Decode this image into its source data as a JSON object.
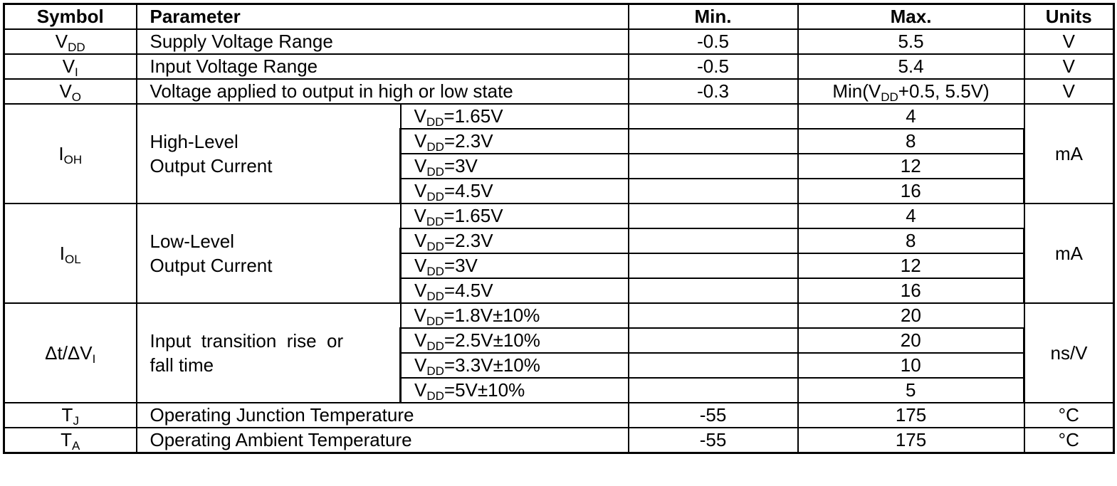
{
  "headers": {
    "symbol": "Symbol",
    "parameter": "Parameter",
    "min": "Min.",
    "max": "Max.",
    "units": "Units"
  },
  "simple_rows_top": [
    {
      "sym_base": "V",
      "sym_sub": "DD",
      "param": "Supply Voltage Range",
      "min": "-0.5",
      "max": "5.5",
      "unit": "V"
    },
    {
      "sym_base": "V",
      "sym_sub": "I",
      "param": "Input Voltage Range",
      "min": "-0.5",
      "max": "5.4",
      "unit": "V"
    },
    {
      "sym_base": "V",
      "sym_sub": "O",
      "param": "Voltage applied to output in high or low state",
      "min": "-0.3",
      "max_pre": "Min(V",
      "max_sub": "DD",
      "max_post": "+0.5, 5.5V)",
      "unit": "V"
    }
  ],
  "groups": [
    {
      "sym_base": "I",
      "sym_sub": "OH",
      "param_line1": "High-Level",
      "param_line2": "Output Current",
      "unit": "mA",
      "conditions": [
        {
          "v": "V",
          "sub": "DD",
          "eq": "=1.65V",
          "max": "4"
        },
        {
          "v": "V",
          "sub": "DD",
          "eq": "=2.3V",
          "max": "8"
        },
        {
          "v": "V",
          "sub": "DD",
          "eq": "=3V",
          "max": "12"
        },
        {
          "v": "V",
          "sub": "DD",
          "eq": "=4.5V",
          "max": "16"
        }
      ]
    },
    {
      "sym_base": "I",
      "sym_sub": "OL",
      "param_line1": "Low-Level",
      "param_line2": "Output Current",
      "unit": "mA",
      "conditions": [
        {
          "v": "V",
          "sub": "DD",
          "eq": "=1.65V",
          "max": "4"
        },
        {
          "v": "V",
          "sub": "DD",
          "eq": "=2.3V",
          "max": "8"
        },
        {
          "v": "V",
          "sub": "DD",
          "eq": "=3V",
          "max": "12"
        },
        {
          "v": "V",
          "sub": "DD",
          "eq": "=4.5V",
          "max": "16"
        }
      ]
    },
    {
      "sym_base": "Δt/ΔV",
      "sym_sub": "I",
      "param_line1": "Input  transition  rise  or",
      "param_line2": "fall time",
      "unit": "ns/V",
      "conditions": [
        {
          "v": "V",
          "sub": "DD",
          "eq": "=1.8V±10%",
          "max": "20"
        },
        {
          "v": "V",
          "sub": "DD",
          "eq": "=2.5V±10%",
          "max": "20"
        },
        {
          "v": "V",
          "sub": "DD",
          "eq": "=3.3V±10%",
          "max": "10"
        },
        {
          "v": "V",
          "sub": "DD",
          "eq": "=5V±10%",
          "max": "5"
        }
      ]
    }
  ],
  "simple_rows_bottom": [
    {
      "sym_base": "T",
      "sym_sub": "J",
      "param": "Operating Junction Temperature",
      "min": "-55",
      "max": "175",
      "unit": "°C"
    },
    {
      "sym_base": "T",
      "sym_sub": "A",
      "param": "Operating Ambient Temperature",
      "min": "-55",
      "max": "175",
      "unit": "°C"
    }
  ]
}
